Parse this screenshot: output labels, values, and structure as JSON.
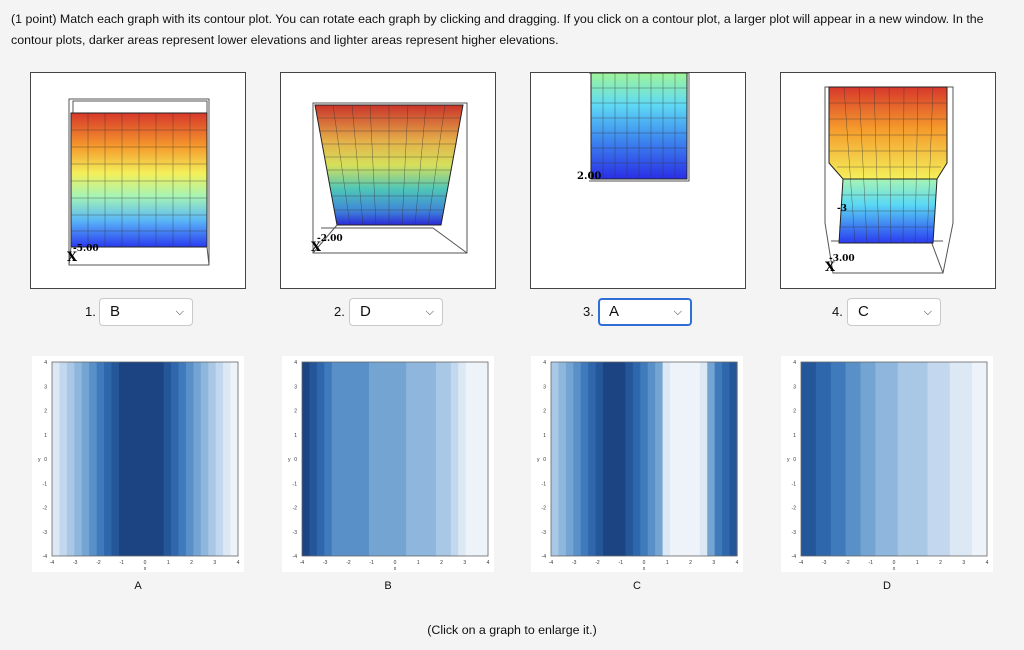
{
  "instructions": "(1 point) Match each graph with its contour plot. You can rotate each graph by clicking and dragging. If you click on a contour plot, a larger plot will appear in a new window. In the contour plots, darker areas represent lower elevations and lighter areas represent higher elevations.",
  "graphs": [
    {
      "number": "1.",
      "selected": "B",
      "axis_label": "X",
      "tick_text": "-5.00"
    },
    {
      "number": "2.",
      "selected": "D",
      "axis_label": "X",
      "tick_text": "-2.00"
    },
    {
      "number": "3.",
      "selected": "A",
      "axis_label": "",
      "tick_text": "2.00"
    },
    {
      "number": "4.",
      "selected": "C",
      "axis_label": "X",
      "tick_text": "-3.00",
      "side_label": "-3"
    }
  ],
  "contours": [
    {
      "label": "A",
      "x_axis_label": "x",
      "y_axis_label": "y"
    },
    {
      "label": "B",
      "x_axis_label": "x",
      "y_axis_label": "y"
    },
    {
      "label": "C",
      "x_axis_label": "x",
      "y_axis_label": "y"
    },
    {
      "label": "D",
      "x_axis_label": "x",
      "y_axis_label": "y"
    }
  ],
  "tick_values": [
    "-4",
    "-3",
    "-2",
    "-1",
    "0",
    "1",
    "2",
    "3",
    "4"
  ],
  "footer": "(Click on a graph to enlarge it.)",
  "colors": {
    "focus": "#2f6fd6",
    "dark_blue": "#1c4382",
    "light_blue": "#eef3fa"
  }
}
